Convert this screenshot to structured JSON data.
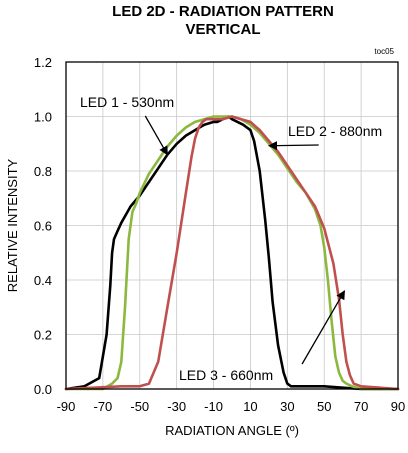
{
  "chart_data": {
    "type": "line",
    "title": "LED 2D - RADIATION PATTERN",
    "subtitle": "VERTICAL",
    "tag": "toc05",
    "xlabel": "RADIATION ANGLE (º)",
    "ylabel": "RELATIVE INTENSITY",
    "xlim": [
      -90,
      90
    ],
    "ylim": [
      0,
      1.2
    ],
    "x_ticks": [
      "-90",
      "-70",
      "-50",
      "-30",
      "-10",
      "10",
      "30",
      "50",
      "70",
      "90"
    ],
    "y_ticks": [
      "0.0",
      "0.2",
      "0.4",
      "0.6",
      "0.8",
      "1.0",
      "1.2"
    ],
    "grid": true,
    "series": [
      {
        "name": "LED 1 - 530nm",
        "color": "#000000",
        "x": [
          -90,
          -80,
          -72,
          -68,
          -66,
          -65,
          -64,
          -62,
          -60,
          -55,
          -50,
          -45,
          -40,
          -35,
          -30,
          -25,
          -20,
          -15,
          -10,
          -8,
          -5,
          -2,
          0,
          3,
          6,
          8,
          10,
          12,
          15,
          18,
          20,
          22,
          25,
          28,
          30,
          32,
          35,
          40,
          50,
          70,
          90
        ],
        "y": [
          0.0,
          0.01,
          0.04,
          0.2,
          0.38,
          0.5,
          0.55,
          0.58,
          0.61,
          0.67,
          0.71,
          0.76,
          0.81,
          0.86,
          0.9,
          0.93,
          0.95,
          0.97,
          0.98,
          0.98,
          0.99,
          1.0,
          0.99,
          0.98,
          0.97,
          0.96,
          0.95,
          0.91,
          0.8,
          0.62,
          0.48,
          0.32,
          0.16,
          0.06,
          0.02,
          0.01,
          0.01,
          0.01,
          0.01,
          0.0,
          0.0
        ]
      },
      {
        "name": "LED 2 - 880nm",
        "color": "#8db83f",
        "x": [
          -90,
          -70,
          -65,
          -62,
          -60,
          -58,
          -56,
          -54,
          -52,
          -50,
          -45,
          -40,
          -35,
          -30,
          -25,
          -20,
          -15,
          -10,
          -5,
          0,
          5,
          10,
          15,
          20,
          25,
          30,
          35,
          40,
          45,
          48,
          50,
          52,
          54,
          56,
          58,
          60,
          62,
          65,
          70,
          90
        ],
        "y": [
          0.0,
          0.0,
          0.02,
          0.04,
          0.1,
          0.3,
          0.55,
          0.65,
          0.68,
          0.72,
          0.79,
          0.84,
          0.89,
          0.93,
          0.96,
          0.98,
          0.99,
          1.0,
          1.0,
          1.0,
          0.99,
          0.97,
          0.94,
          0.9,
          0.86,
          0.81,
          0.76,
          0.72,
          0.66,
          0.6,
          0.52,
          0.4,
          0.25,
          0.12,
          0.06,
          0.03,
          0.02,
          0.01,
          0.0,
          0.0
        ]
      },
      {
        "name": "LED 3 - 660nm",
        "color": "#c0504d",
        "x": [
          -90,
          -60,
          -50,
          -45,
          -40,
          -35,
          -30,
          -25,
          -22,
          -20,
          -18,
          -16,
          -14,
          -12,
          -10,
          -5,
          0,
          5,
          10,
          15,
          20,
          25,
          30,
          35,
          40,
          45,
          50,
          55,
          58,
          60,
          62,
          64,
          66,
          70,
          90
        ],
        "y": [
          0.0,
          0.01,
          0.01,
          0.02,
          0.1,
          0.3,
          0.5,
          0.72,
          0.85,
          0.92,
          0.96,
          0.98,
          0.99,
          0.99,
          0.99,
          0.99,
          1.0,
          0.99,
          0.98,
          0.95,
          0.91,
          0.87,
          0.82,
          0.77,
          0.72,
          0.67,
          0.59,
          0.46,
          0.33,
          0.2,
          0.1,
          0.05,
          0.02,
          0.01,
          0.0
        ]
      }
    ],
    "annotations": [
      {
        "text": "LED 1 - 530nm",
        "series": "LED 1 - 530nm"
      },
      {
        "text": "LED 2 - 880nm",
        "series": "LED 2 - 880nm"
      },
      {
        "text": "LED 3 - 660nm",
        "series": "LED 3 - 660nm"
      }
    ]
  }
}
